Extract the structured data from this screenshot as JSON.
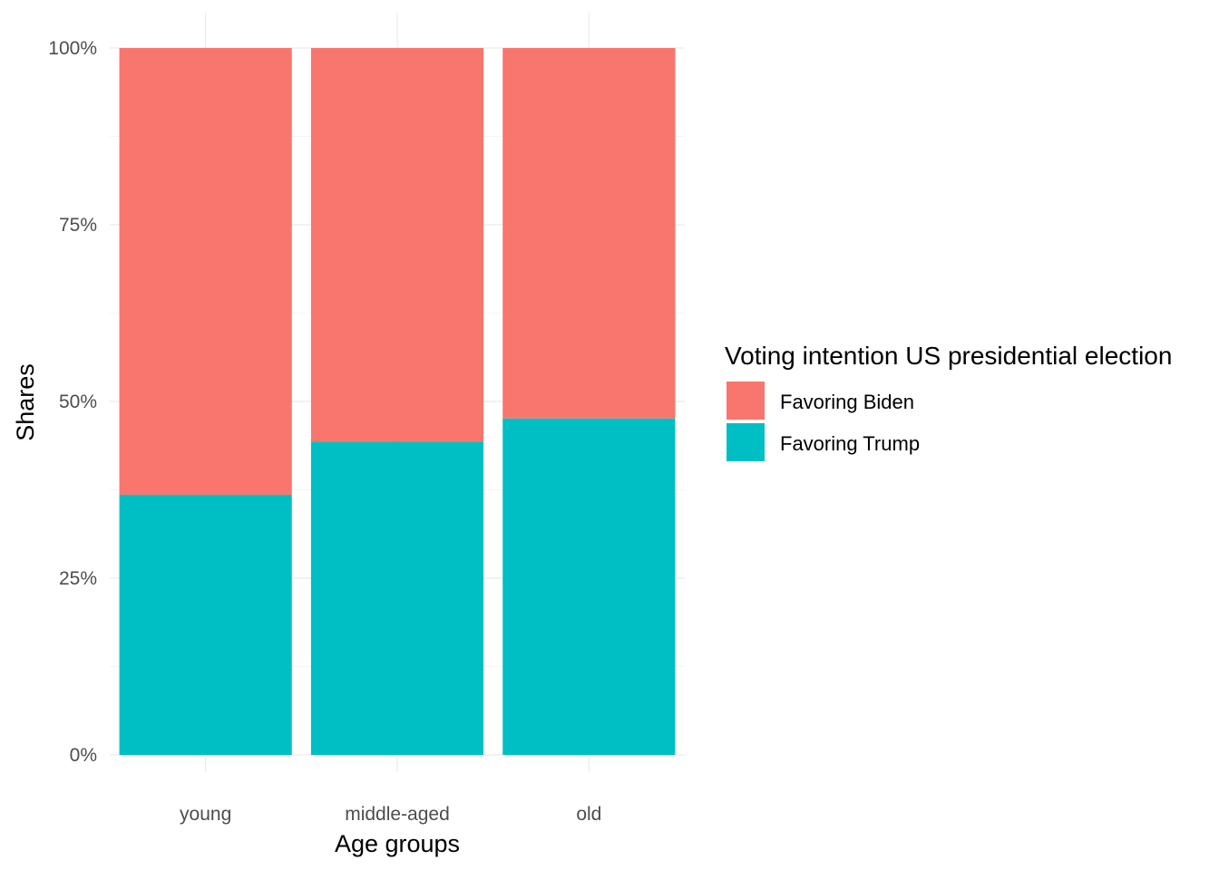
{
  "chart_data": {
    "type": "bar",
    "stacked": true,
    "categories": [
      "young",
      "middle-aged",
      "old"
    ],
    "series": [
      {
        "name": "Favoring Trump",
        "color": "#00BFC4",
        "values": [
          36.8,
          44.3,
          47.6
        ]
      },
      {
        "name": "Favoring Biden",
        "color": "#F8766D",
        "values": [
          63.2,
          55.7,
          52.4
        ]
      }
    ],
    "title": "",
    "xlabel": "Age groups",
    "ylabel": "Shares",
    "ylim": [
      0,
      100
    ],
    "yticks": [
      0,
      25,
      50,
      75,
      100
    ],
    "ytick_labels": [
      "0%",
      "25%",
      "50%",
      "75%",
      "100%"
    ],
    "grid": true,
    "legend": {
      "title": "Voting intention US presidential election",
      "position": "right",
      "entries": [
        {
          "label": "Favoring Biden",
          "color": "#F8766D"
        },
        {
          "label": "Favoring Trump",
          "color": "#00BFC4"
        }
      ]
    }
  }
}
